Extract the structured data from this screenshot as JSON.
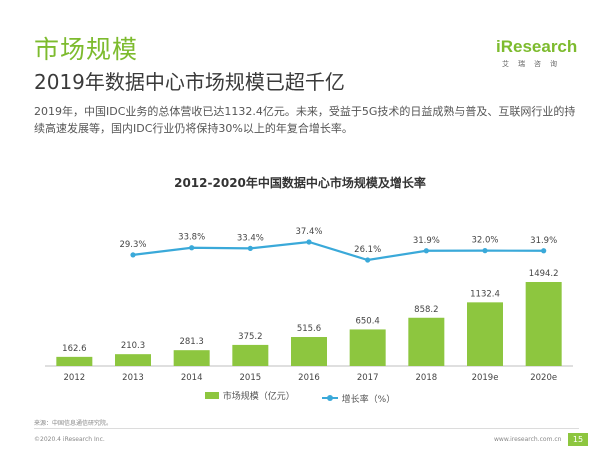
{
  "page": {
    "section_title": "市场规模",
    "headline": "2019年数据中心市场规模已超千亿",
    "intro": "2019年，中国IDC业务的总体营收已达1132.4亿元。未来，受益于5G技术的日益成熟与普及、互联网行业的持续高速发展等，国内IDC行业仍将保持30%以上的年复合增长率。",
    "source": "来源：中国信息通信研究院。",
    "copyright": "©2020.4 iResearch Inc.",
    "website": "www.iresearch.com.cn",
    "page_number": "15"
  },
  "logo": {
    "wordmark": "iResearch",
    "tagline": "艾瑞咨询"
  },
  "colors": {
    "accent": "#7dbb2e",
    "bar": "#8dc63f",
    "line": "#3aa9d9"
  },
  "chart_data": {
    "type": "bar+line",
    "title": "2012-2020年中国数据中心市场规模及增长率",
    "categories": [
      "2012",
      "2013",
      "2014",
      "2015",
      "2016",
      "2017",
      "2018",
      "2019e",
      "2020e"
    ],
    "series": [
      {
        "name": "市场规模（亿元）",
        "type": "bar",
        "values": [
          162.6,
          210.3,
          281.3,
          375.2,
          515.6,
          650.4,
          858.2,
          1132.4,
          1494.2
        ],
        "labels": [
          "162.6",
          "210.3",
          "281.3",
          "375.2",
          "515.6",
          "650.4",
          "858.2",
          "1132.4",
          "1494.2"
        ]
      },
      {
        "name": "增长率（%）",
        "type": "line",
        "values": [
          null,
          29.3,
          33.8,
          33.4,
          37.4,
          26.1,
          31.9,
          32.0,
          31.9
        ],
        "labels": [
          "",
          "29.3%",
          "33.8%",
          "33.4%",
          "37.4%",
          "26.1%",
          "31.9%",
          "32.0%",
          "31.9%"
        ]
      }
    ],
    "legend_position": "bottom"
  }
}
